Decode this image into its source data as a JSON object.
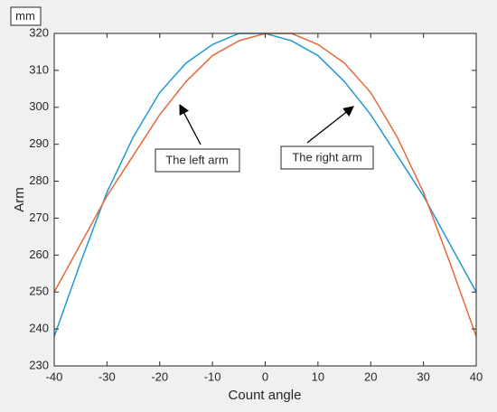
{
  "chart_data": {
    "type": "line",
    "y_unit": "mm",
    "xlabel": "Count angle",
    "ylabel": "Arm",
    "x": [
      -40,
      -35,
      -30,
      -25,
      -20,
      -15,
      -10,
      -5,
      0,
      5,
      10,
      15,
      20,
      25,
      30,
      35,
      40
    ],
    "series": [
      {
        "color": "#1f9ad0",
        "values": [
          238,
          258,
          277,
          292,
          304,
          312,
          317,
          320,
          320,
          318,
          314,
          307,
          298,
          287,
          276,
          263,
          250
        ]
      },
      {
        "color": "#e8673a",
        "values": [
          250,
          263,
          276,
          287,
          298,
          307,
          314,
          318,
          320,
          320,
          317,
          312,
          304,
          292,
          277,
          258,
          238
        ]
      }
    ],
    "annotations": [
      "The left arm",
      "The right arm"
    ],
    "xlim": [
      -40,
      40
    ],
    "ylim": [
      230,
      320
    ],
    "xticks": [
      -40,
      -30,
      -20,
      -10,
      0,
      10,
      20,
      30,
      40
    ],
    "yticks": [
      230,
      240,
      250,
      260,
      270,
      280,
      290,
      300,
      310,
      320
    ],
    "grid": false
  }
}
